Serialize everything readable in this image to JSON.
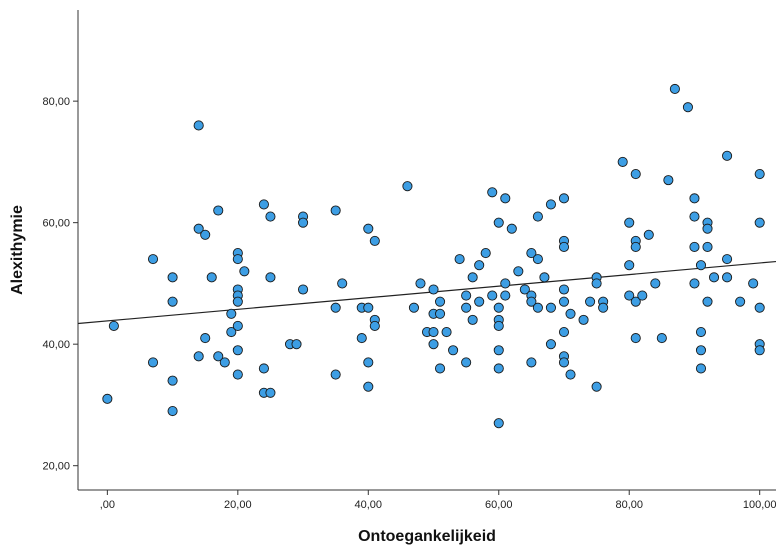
{
  "chart_data": {
    "type": "scatter",
    "title": "",
    "xlabel": "Ontoegankelijkeid",
    "ylabel": "Alexithymie",
    "xlim": [
      -4.5,
      102.5
    ],
    "ylim": [
      16,
      95
    ],
    "x_ticks": [
      0,
      20,
      40,
      60,
      80,
      100
    ],
    "x_tick_labels": [
      ",00",
      "20,00",
      "40,00",
      "60,00",
      "80,00",
      "100,00"
    ],
    "y_ticks": [
      20,
      40,
      60,
      80
    ],
    "y_tick_labels": [
      "20,00",
      "40,00",
      "60,00",
      "80,00"
    ],
    "grid": false,
    "legend": "none",
    "colors": {
      "marker_fill": "#3d9ee4",
      "marker_stroke": "#1a1a1a",
      "fit_line": "#222222",
      "axis": "#333333"
    },
    "fit_line": {
      "x": [
        -4.5,
        102.5
      ],
      "y": [
        43.4,
        53.6
      ]
    },
    "points": [
      {
        "x": 0,
        "y": 31
      },
      {
        "x": 1,
        "y": 43
      },
      {
        "x": 7,
        "y": 37
      },
      {
        "x": 7,
        "y": 54
      },
      {
        "x": 10,
        "y": 29
      },
      {
        "x": 10,
        "y": 34
      },
      {
        "x": 10,
        "y": 47
      },
      {
        "x": 10,
        "y": 51
      },
      {
        "x": 14,
        "y": 76
      },
      {
        "x": 14,
        "y": 59
      },
      {
        "x": 14,
        "y": 38
      },
      {
        "x": 15,
        "y": 58
      },
      {
        "x": 15,
        "y": 41
      },
      {
        "x": 16,
        "y": 51
      },
      {
        "x": 17,
        "y": 62
      },
      {
        "x": 17,
        "y": 38
      },
      {
        "x": 18,
        "y": 37
      },
      {
        "x": 19,
        "y": 42
      },
      {
        "x": 19,
        "y": 45
      },
      {
        "x": 20,
        "y": 55
      },
      {
        "x": 20,
        "y": 54
      },
      {
        "x": 20,
        "y": 49
      },
      {
        "x": 20,
        "y": 48
      },
      {
        "x": 20,
        "y": 47
      },
      {
        "x": 20,
        "y": 43
      },
      {
        "x": 20,
        "y": 39
      },
      {
        "x": 20,
        "y": 35
      },
      {
        "x": 21,
        "y": 52
      },
      {
        "x": 24,
        "y": 63
      },
      {
        "x": 24,
        "y": 36
      },
      {
        "x": 24,
        "y": 32
      },
      {
        "x": 25,
        "y": 61
      },
      {
        "x": 25,
        "y": 51
      },
      {
        "x": 25,
        "y": 32
      },
      {
        "x": 28,
        "y": 40
      },
      {
        "x": 29,
        "y": 40
      },
      {
        "x": 30,
        "y": 61
      },
      {
        "x": 30,
        "y": 60
      },
      {
        "x": 30,
        "y": 49
      },
      {
        "x": 35,
        "y": 62
      },
      {
        "x": 35,
        "y": 46
      },
      {
        "x": 35,
        "y": 35
      },
      {
        "x": 36,
        "y": 50
      },
      {
        "x": 39,
        "y": 46
      },
      {
        "x": 39,
        "y": 41
      },
      {
        "x": 40,
        "y": 59
      },
      {
        "x": 40,
        "y": 46
      },
      {
        "x": 40,
        "y": 37
      },
      {
        "x": 40,
        "y": 33
      },
      {
        "x": 41,
        "y": 57
      },
      {
        "x": 41,
        "y": 44
      },
      {
        "x": 41,
        "y": 43
      },
      {
        "x": 46,
        "y": 66
      },
      {
        "x": 47,
        "y": 46
      },
      {
        "x": 48,
        "y": 50
      },
      {
        "x": 49,
        "y": 42
      },
      {
        "x": 50,
        "y": 49
      },
      {
        "x": 50,
        "y": 45
      },
      {
        "x": 50,
        "y": 42
      },
      {
        "x": 50,
        "y": 40
      },
      {
        "x": 51,
        "y": 47
      },
      {
        "x": 51,
        "y": 45
      },
      {
        "x": 51,
        "y": 36
      },
      {
        "x": 52,
        "y": 42
      },
      {
        "x": 53,
        "y": 39
      },
      {
        "x": 54,
        "y": 54
      },
      {
        "x": 55,
        "y": 48
      },
      {
        "x": 55,
        "y": 46
      },
      {
        "x": 55,
        "y": 37
      },
      {
        "x": 56,
        "y": 51
      },
      {
        "x": 56,
        "y": 44
      },
      {
        "x": 57,
        "y": 53
      },
      {
        "x": 57,
        "y": 47
      },
      {
        "x": 58,
        "y": 55
      },
      {
        "x": 59,
        "y": 65
      },
      {
        "x": 59,
        "y": 48
      },
      {
        "x": 60,
        "y": 60
      },
      {
        "x": 60,
        "y": 46
      },
      {
        "x": 60,
        "y": 44
      },
      {
        "x": 60,
        "y": 43
      },
      {
        "x": 60,
        "y": 39
      },
      {
        "x": 60,
        "y": 36
      },
      {
        "x": 60,
        "y": 27
      },
      {
        "x": 61,
        "y": 64
      },
      {
        "x": 61,
        "y": 50
      },
      {
        "x": 61,
        "y": 48
      },
      {
        "x": 62,
        "y": 59
      },
      {
        "x": 63,
        "y": 52
      },
      {
        "x": 64,
        "y": 49
      },
      {
        "x": 65,
        "y": 55
      },
      {
        "x": 65,
        "y": 48
      },
      {
        "x": 65,
        "y": 47
      },
      {
        "x": 65,
        "y": 37
      },
      {
        "x": 66,
        "y": 61
      },
      {
        "x": 66,
        "y": 54
      },
      {
        "x": 66,
        "y": 46
      },
      {
        "x": 67,
        "y": 51
      },
      {
        "x": 68,
        "y": 63
      },
      {
        "x": 68,
        "y": 46
      },
      {
        "x": 68,
        "y": 40
      },
      {
        "x": 70,
        "y": 64
      },
      {
        "x": 70,
        "y": 57
      },
      {
        "x": 70,
        "y": 56
      },
      {
        "x": 70,
        "y": 49
      },
      {
        "x": 70,
        "y": 47
      },
      {
        "x": 70,
        "y": 42
      },
      {
        "x": 70,
        "y": 38
      },
      {
        "x": 70,
        "y": 37
      },
      {
        "x": 71,
        "y": 45
      },
      {
        "x": 71,
        "y": 35
      },
      {
        "x": 73,
        "y": 44
      },
      {
        "x": 74,
        "y": 47
      },
      {
        "x": 75,
        "y": 51
      },
      {
        "x": 75,
        "y": 50
      },
      {
        "x": 75,
        "y": 33
      },
      {
        "x": 76,
        "y": 47
      },
      {
        "x": 76,
        "y": 46
      },
      {
        "x": 79,
        "y": 70
      },
      {
        "x": 80,
        "y": 60
      },
      {
        "x": 80,
        "y": 53
      },
      {
        "x": 80,
        "y": 48
      },
      {
        "x": 81,
        "y": 68
      },
      {
        "x": 81,
        "y": 57
      },
      {
        "x": 81,
        "y": 56
      },
      {
        "x": 81,
        "y": 47
      },
      {
        "x": 81,
        "y": 41
      },
      {
        "x": 82,
        "y": 48
      },
      {
        "x": 83,
        "y": 58
      },
      {
        "x": 84,
        "y": 50
      },
      {
        "x": 85,
        "y": 41
      },
      {
        "x": 86,
        "y": 67
      },
      {
        "x": 87,
        "y": 82
      },
      {
        "x": 89,
        "y": 79
      },
      {
        "x": 90,
        "y": 64
      },
      {
        "x": 90,
        "y": 61
      },
      {
        "x": 90,
        "y": 56
      },
      {
        "x": 90,
        "y": 50
      },
      {
        "x": 91,
        "y": 53
      },
      {
        "x": 91,
        "y": 42
      },
      {
        "x": 91,
        "y": 39
      },
      {
        "x": 91,
        "y": 36
      },
      {
        "x": 92,
        "y": 60
      },
      {
        "x": 92,
        "y": 59
      },
      {
        "x": 92,
        "y": 56
      },
      {
        "x": 92,
        "y": 47
      },
      {
        "x": 93,
        "y": 51
      },
      {
        "x": 95,
        "y": 71
      },
      {
        "x": 95,
        "y": 54
      },
      {
        "x": 95,
        "y": 51
      },
      {
        "x": 97,
        "y": 47
      },
      {
        "x": 99,
        "y": 50
      },
      {
        "x": 100,
        "y": 68
      },
      {
        "x": 100,
        "y": 60
      },
      {
        "x": 100,
        "y": 46
      },
      {
        "x": 100,
        "y": 40
      },
      {
        "x": 100,
        "y": 39
      }
    ]
  }
}
